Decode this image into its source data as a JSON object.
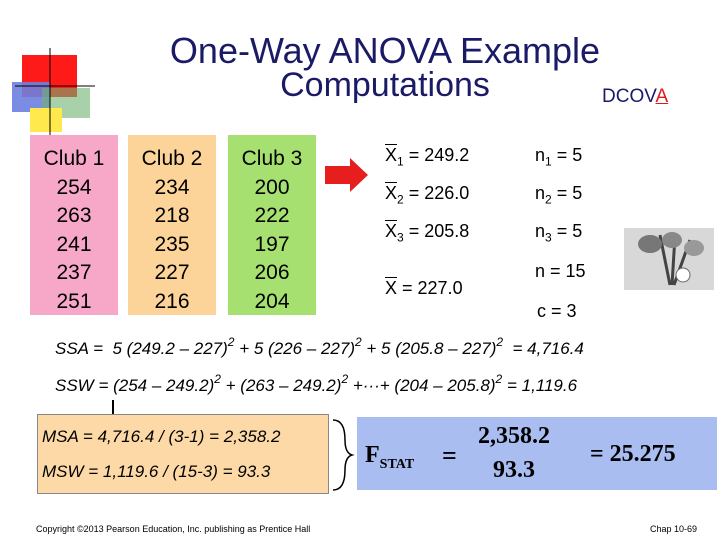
{
  "header": {
    "title": "One-Way ANOVA Example",
    "subtitle": "Computations",
    "tag": "DCOV",
    "tag_highlight": "A"
  },
  "table": {
    "columns": [
      {
        "name": "Club 1",
        "values": [
          "254",
          "263",
          "241",
          "237",
          "251"
        ]
      },
      {
        "name": "Club 2",
        "values": [
          "234",
          "218",
          "235",
          "227",
          "216"
        ]
      },
      {
        "name": "Club 3",
        "values": [
          "200",
          "222",
          "197",
          "206",
          "204"
        ]
      }
    ]
  },
  "means": [
    {
      "symbol": "X",
      "sub": "1",
      "text": " = 249.2"
    },
    {
      "symbol": "X",
      "sub": "2",
      "text": " = 226.0"
    },
    {
      "symbol": "X",
      "sub": "3",
      "text": " = 205.8"
    }
  ],
  "grand_mean": {
    "symbol": "X",
    "text": " = 227.0"
  },
  "sizes": [
    {
      "symbol": "n",
      "sub": "1",
      "text": " = 5"
    },
    {
      "symbol": "n",
      "sub": "2",
      "text": " = 5"
    },
    {
      "symbol": "n",
      "sub": "3",
      "text": " = 5"
    }
  ],
  "n_total": "n = 15",
  "c_groups": "c = 3",
  "ssa": [
    "SSA =  5 (249.2 – 227)",
    "2",
    " + 5 (226 – 227)",
    "2",
    " + 5 (205.8 – 227)",
    "2",
    "  = 4,716.4"
  ],
  "ssw": [
    "SSW = (254 – 249.2)",
    "2",
    " + (263 – 249.2)",
    "2",
    " +···+ (204 – 205.8)",
    "2",
    " = 1,119.6"
  ],
  "msa": "MSA = 4,716.4 / (3-1) = 2,358.2",
  "msw": "MSW = 1,119.6 / (15-3) = 93.3",
  "fstat": {
    "symbol": "F",
    "sub": "STAT",
    "numerator": "2,358.2",
    "denominator": "93.3",
    "result": "= 25.275"
  },
  "footer": {
    "copyright": "Copyright ©2013 Pearson Education, Inc. publishing as Prentice Hall",
    "page": "Chap 10-69"
  }
}
